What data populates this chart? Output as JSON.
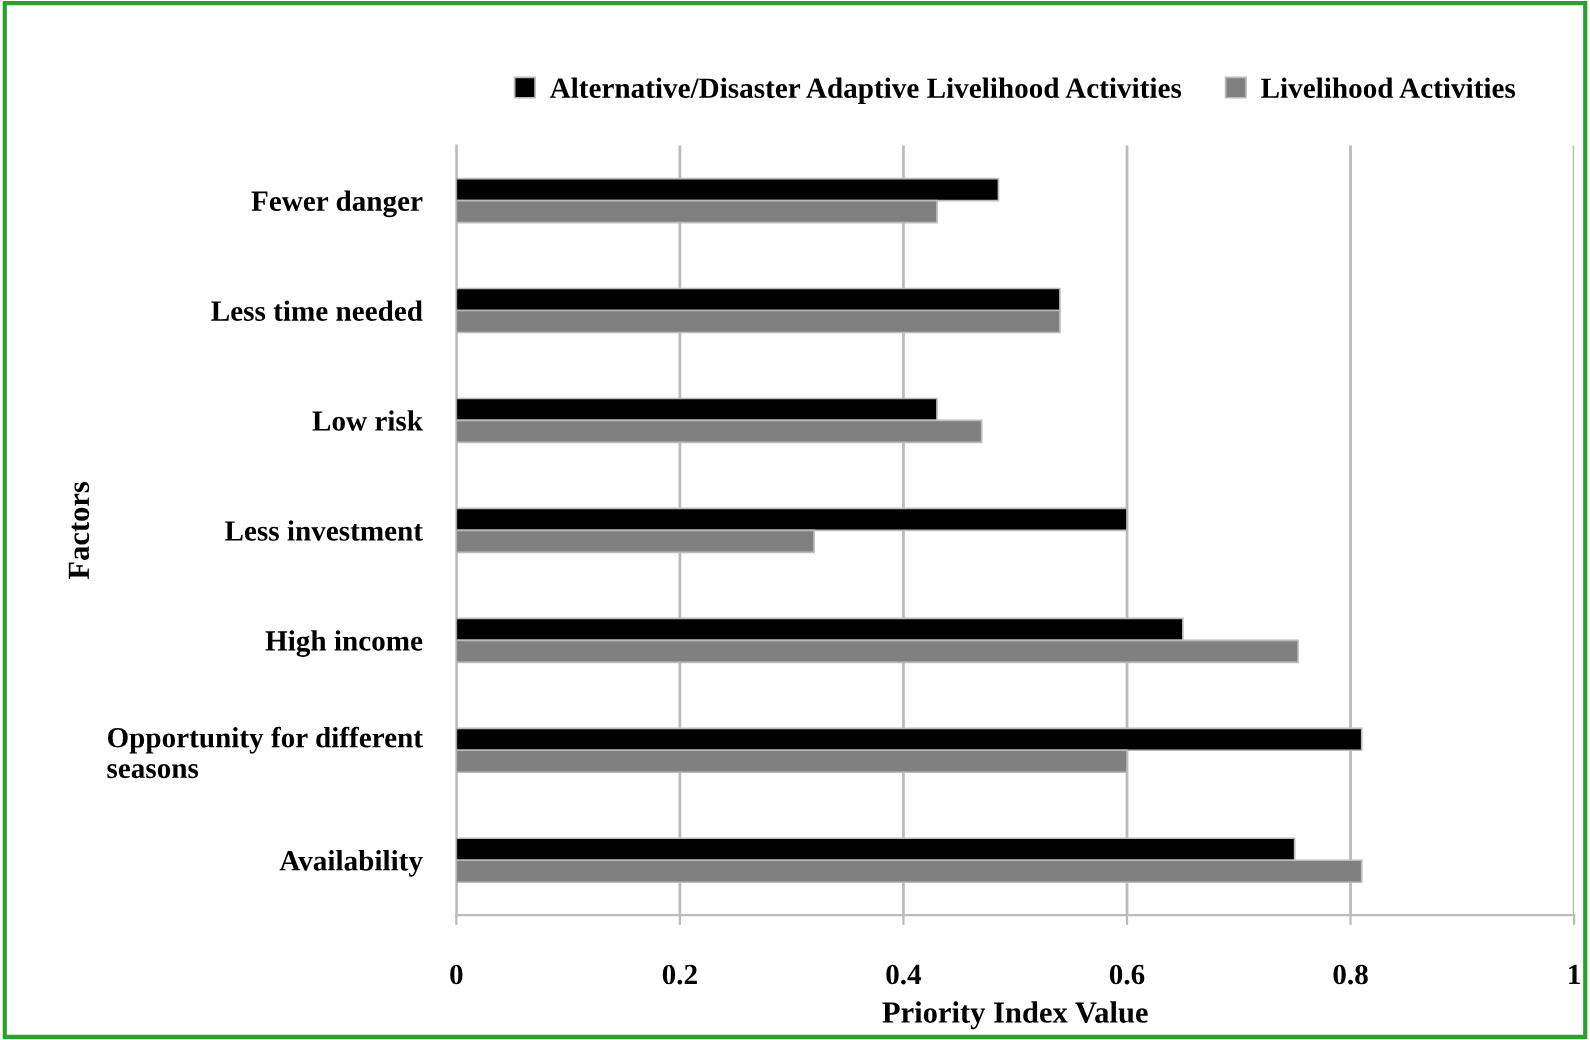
{
  "chart_data": {
    "type": "bar",
    "orientation": "horizontal",
    "xlabel": "Priority Index Value",
    "ylabel": "Factors",
    "categories": [
      "Fewer danger",
      "Less time needed",
      "Low risk",
      "Less investment",
      "High income",
      "Opportunity for different seasons",
      "Availability"
    ],
    "series": [
      {
        "name": "Alternative/Disaster Adaptive Livelihood Activities",
        "color": "#000000",
        "values": [
          0.485,
          0.54,
          0.43,
          0.6,
          0.65,
          0.81,
          0.75
        ]
      },
      {
        "name": "Livelihood Activities",
        "color": "#808080",
        "values": [
          0.43,
          0.54,
          0.47,
          0.32,
          0.753,
          0.6,
          0.81
        ]
      }
    ],
    "xlim": [
      0,
      1
    ],
    "xticks": [
      0,
      0.2,
      0.4,
      0.6,
      0.8,
      1
    ],
    "grid": "x",
    "legend": "top"
  }
}
